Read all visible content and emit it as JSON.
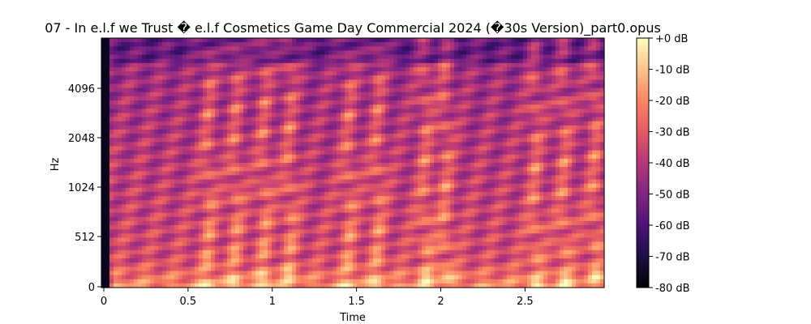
{
  "chart_data": {
    "type": "heatmap",
    "title": "07 - In e.l.f we Trust � e.l.f Cosmetics Game Day Commercial 2024 (�30s Version)_part0.opus",
    "xlabel": "Time",
    "ylabel": "Hz",
    "xlim": [
      0,
      2.97
    ],
    "x_ticks": [
      0,
      0.5,
      1,
      1.5,
      2,
      2.5
    ],
    "x_tick_labels": [
      "0",
      "0.5",
      "1",
      "1.5",
      "2",
      "2.5"
    ],
    "y_scale": "log2-like",
    "y_ticks": [
      0,
      512,
      1024,
      2048,
      4096
    ],
    "y_tick_labels": [
      "0",
      "512",
      "1024",
      "2048",
      "4096"
    ],
    "colorbar": {
      "colormap": "magma",
      "range_db": [
        -80,
        0
      ],
      "ticks": [
        0,
        -10,
        -20,
        -30,
        -40,
        -50,
        -60,
        -70,
        -80
      ],
      "tick_labels": [
        "+0 dB",
        "-10 dB",
        "-20 dB",
        "-30 dB",
        "-40 dB",
        "-50 dB",
        "-60 dB",
        "-70 dB",
        "-80 dB"
      ]
    }
  }
}
